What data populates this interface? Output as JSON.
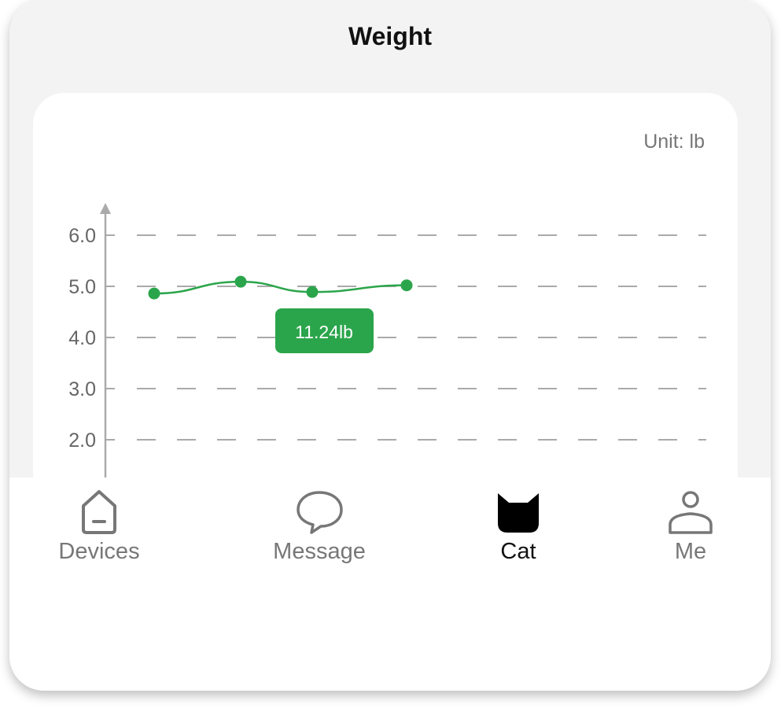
{
  "header": {
    "title": "Weight"
  },
  "chart_data": {
    "type": "line",
    "unit_label": "Unit: lb",
    "y_ticks": [
      "2.0",
      "3.0",
      "4.0",
      "5.0",
      "6.0"
    ],
    "ylim": [
      1.3,
      6.6
    ],
    "grid": true,
    "values": [
      4.86,
      5.09,
      4.89,
      5.02
    ],
    "tooltip": "11.24lb",
    "color": "#2ba54b"
  },
  "nav": {
    "items": [
      {
        "label": "Devices",
        "icon": "home-icon"
      },
      {
        "label": "Message",
        "icon": "chat-bubble-icon"
      },
      {
        "label": "Cat",
        "icon": "cat-icon",
        "active": true
      },
      {
        "label": "Me",
        "icon": "person-icon"
      }
    ]
  }
}
